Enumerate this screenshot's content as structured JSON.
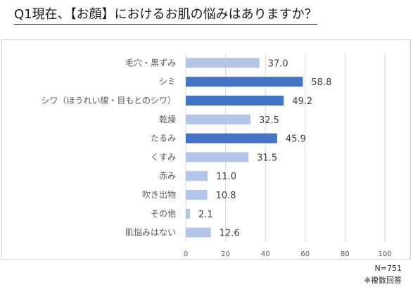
{
  "chart_data": {
    "type": "bar",
    "orientation": "horizontal",
    "title": "Q1現在、【お顔】におけるお肌の悩みはありますか？",
    "categories": [
      "毛穴・黒ずみ",
      "シミ",
      "シワ（ほうれい線・目もとのシワ）",
      "乾燥",
      "たるみ",
      "くすみ",
      "赤み",
      "吹き出物",
      "その他",
      "肌悩みはない"
    ],
    "values": [
      37.0,
      58.8,
      49.2,
      32.5,
      45.9,
      31.5,
      11.0,
      10.8,
      2.1,
      12.6
    ],
    "value_labels": [
      "37.0",
      "58.8",
      "49.2",
      "32.5",
      "45.9",
      "31.5",
      "11.0",
      "10.8",
      "2.1",
      "12.6"
    ],
    "highlighted": [
      false,
      true,
      true,
      false,
      true,
      false,
      false,
      false,
      false,
      false
    ],
    "xlim": [
      0,
      100
    ],
    "xticks": [
      "0",
      "20",
      "40",
      "60",
      "80",
      "100"
    ],
    "grid": true,
    "colors": {
      "highlight": "#4472c4",
      "normal": "#b4c6e7",
      "grid": "#d9d9d9",
      "axis_text": "#595959"
    }
  },
  "footer": {
    "n": "N=751",
    "note": "※複数回答"
  }
}
